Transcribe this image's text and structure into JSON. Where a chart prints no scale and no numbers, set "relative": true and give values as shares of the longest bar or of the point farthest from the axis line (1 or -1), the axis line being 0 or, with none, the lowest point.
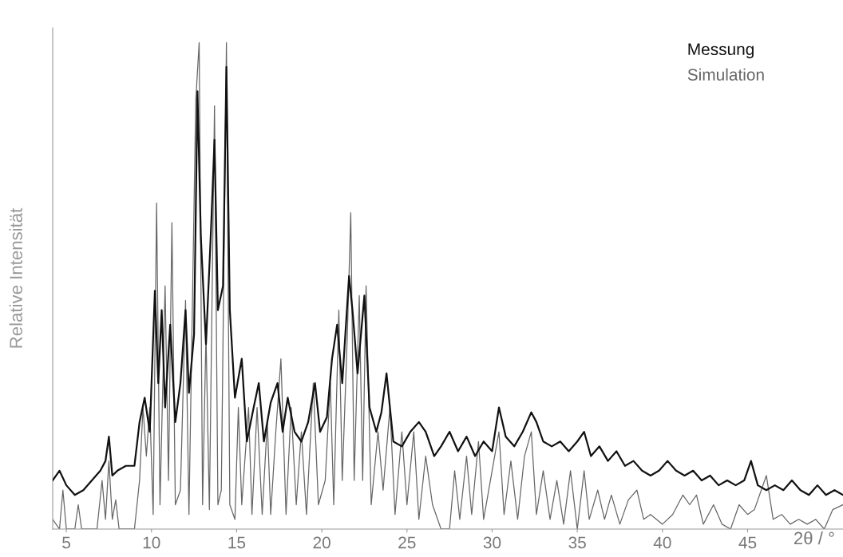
{
  "chart_data": {
    "type": "line",
    "relative": true,
    "xlabel": "2θ / °",
    "ylabel": "Relative Intensität",
    "xlim": [
      4.2,
      50.6
    ],
    "xticks": [
      5,
      10,
      15,
      20,
      25,
      30,
      35,
      40,
      45
    ],
    "grid": false,
    "legend": "top right",
    "marker": "none",
    "line_style": "solid",
    "series": [
      {
        "name": "Messung",
        "color": "#111111",
        "x": [
          4.2,
          4.6,
          5.0,
          5.5,
          6.0,
          6.5,
          7.0,
          7.3,
          7.5,
          7.7,
          8.0,
          8.5,
          9.0,
          9.3,
          9.6,
          9.9,
          10.2,
          10.4,
          10.6,
          10.8,
          11.1,
          11.4,
          11.7,
          12.0,
          12.2,
          12.5,
          12.7,
          12.9,
          13.2,
          13.5,
          13.7,
          13.9,
          14.2,
          14.4,
          14.6,
          14.9,
          15.3,
          15.6,
          16.0,
          16.3,
          16.6,
          17.0,
          17.4,
          17.7,
          18.0,
          18.4,
          18.8,
          19.2,
          19.6,
          19.9,
          20.3,
          20.6,
          20.9,
          21.2,
          21.6,
          21.8,
          22.1,
          22.5,
          22.8,
          23.2,
          23.5,
          23.8,
          24.2,
          24.7,
          25.2,
          25.7,
          26.1,
          26.6,
          27.0,
          27.5,
          28.0,
          28.5,
          29.0,
          29.5,
          30.0,
          30.4,
          30.8,
          31.3,
          31.8,
          32.3,
          32.6,
          33.0,
          33.5,
          34.0,
          34.5,
          35.0,
          35.4,
          35.8,
          36.3,
          36.8,
          37.3,
          37.8,
          38.3,
          38.8,
          39.3,
          39.8,
          40.3,
          40.8,
          41.3,
          41.8,
          42.3,
          42.8,
          43.3,
          43.8,
          44.3,
          44.8,
          45.2,
          45.6,
          46.1,
          46.6,
          47.1,
          47.6,
          48.1,
          48.6,
          49.1,
          49.6,
          50.1,
          50.6
        ],
        "values": [
          0.1,
          0.12,
          0.09,
          0.07,
          0.08,
          0.1,
          0.12,
          0.14,
          0.19,
          0.11,
          0.12,
          0.13,
          0.13,
          0.22,
          0.27,
          0.2,
          0.49,
          0.3,
          0.45,
          0.25,
          0.42,
          0.22,
          0.3,
          0.45,
          0.28,
          0.4,
          0.9,
          0.6,
          0.38,
          0.62,
          0.8,
          0.45,
          0.5,
          0.95,
          0.45,
          0.27,
          0.35,
          0.18,
          0.25,
          0.3,
          0.18,
          0.26,
          0.3,
          0.2,
          0.27,
          0.2,
          0.18,
          0.22,
          0.3,
          0.2,
          0.23,
          0.35,
          0.42,
          0.3,
          0.52,
          0.45,
          0.32,
          0.48,
          0.25,
          0.2,
          0.24,
          0.32,
          0.18,
          0.17,
          0.2,
          0.22,
          0.2,
          0.15,
          0.17,
          0.2,
          0.16,
          0.19,
          0.15,
          0.18,
          0.16,
          0.25,
          0.19,
          0.17,
          0.2,
          0.24,
          0.22,
          0.18,
          0.17,
          0.18,
          0.16,
          0.18,
          0.2,
          0.15,
          0.17,
          0.14,
          0.16,
          0.13,
          0.14,
          0.12,
          0.11,
          0.12,
          0.14,
          0.12,
          0.11,
          0.12,
          0.1,
          0.11,
          0.09,
          0.1,
          0.09,
          0.1,
          0.14,
          0.09,
          0.08,
          0.09,
          0.08,
          0.1,
          0.08,
          0.07,
          0.09,
          0.07,
          0.08,
          0.07
        ]
      },
      {
        "name": "Simulation",
        "color": "#666666",
        "x": [
          4.2,
          4.6,
          4.8,
          5.0,
          5.5,
          5.7,
          5.9,
          6.8,
          7.1,
          7.3,
          7.5,
          7.7,
          7.9,
          8.1,
          9.0,
          9.3,
          9.5,
          9.7,
          9.9,
          10.1,
          10.3,
          10.5,
          10.8,
          11.0,
          11.2,
          11.4,
          11.7,
          12.0,
          12.2,
          12.6,
          12.8,
          13.0,
          13.2,
          13.4,
          13.7,
          13.9,
          14.1,
          14.4,
          14.6,
          14.9,
          15.1,
          15.3,
          15.7,
          15.9,
          16.2,
          16.5,
          16.8,
          17.0,
          17.3,
          17.6,
          17.9,
          18.2,
          18.5,
          18.8,
          19.1,
          19.5,
          19.8,
          20.2,
          20.5,
          20.7,
          21.0,
          21.2,
          21.5,
          21.7,
          21.9,
          22.2,
          22.4,
          22.6,
          22.9,
          23.3,
          23.6,
          24.0,
          24.3,
          24.7,
          25.0,
          25.4,
          25.7,
          26.1,
          26.5,
          27.0,
          27.5,
          27.8,
          28.1,
          28.5,
          28.8,
          29.2,
          29.5,
          30.0,
          30.4,
          30.7,
          31.1,
          31.5,
          31.9,
          32.3,
          32.6,
          33.0,
          33.4,
          33.8,
          34.2,
          34.6,
          35.0,
          35.4,
          35.7,
          36.2,
          36.6,
          37.0,
          37.5,
          38.0,
          38.5,
          38.9,
          39.3,
          40.0,
          40.6,
          41.2,
          41.6,
          42.0,
          42.4,
          43.0,
          43.5,
          44.0,
          44.5,
          45.0,
          45.4,
          46.1,
          46.5,
          47.0,
          47.5,
          48.0,
          48.5,
          49.0,
          49.5,
          50.0,
          50.6
        ],
        "values": [
          0.02,
          0.0,
          0.08,
          0.0,
          0.0,
          0.05,
          0.0,
          0.0,
          0.1,
          0.02,
          0.14,
          0.02,
          0.06,
          0.0,
          0.0,
          0.1,
          0.25,
          0.15,
          0.25,
          0.03,
          0.67,
          0.05,
          0.5,
          0.1,
          0.63,
          0.05,
          0.08,
          0.47,
          0.03,
          0.88,
          1.0,
          0.05,
          0.4,
          0.04,
          0.87,
          0.05,
          0.08,
          1.0,
          0.05,
          0.02,
          0.25,
          0.05,
          0.25,
          0.03,
          0.25,
          0.03,
          0.22,
          0.03,
          0.2,
          0.35,
          0.03,
          0.25,
          0.05,
          0.2,
          0.03,
          0.3,
          0.05,
          0.1,
          0.3,
          0.05,
          0.45,
          0.1,
          0.4,
          0.65,
          0.1,
          0.48,
          0.1,
          0.5,
          0.05,
          0.2,
          0.08,
          0.25,
          0.03,
          0.2,
          0.05,
          0.2,
          0.02,
          0.15,
          0.05,
          0.0,
          0.0,
          0.12,
          0.02,
          0.15,
          0.03,
          0.18,
          0.02,
          0.12,
          0.2,
          0.03,
          0.14,
          0.02,
          0.15,
          0.2,
          0.03,
          0.12,
          0.02,
          0.1,
          0.01,
          0.12,
          0.0,
          0.12,
          0.02,
          0.08,
          0.02,
          0.07,
          0.01,
          0.06,
          0.08,
          0.02,
          0.03,
          0.01,
          0.03,
          0.07,
          0.05,
          0.07,
          0.01,
          0.05,
          0.01,
          0.0,
          0.05,
          0.03,
          0.04,
          0.11,
          0.02,
          0.03,
          0.01,
          0.02,
          0.01,
          0.02,
          0.0,
          0.04,
          0.05
        ]
      }
    ]
  }
}
